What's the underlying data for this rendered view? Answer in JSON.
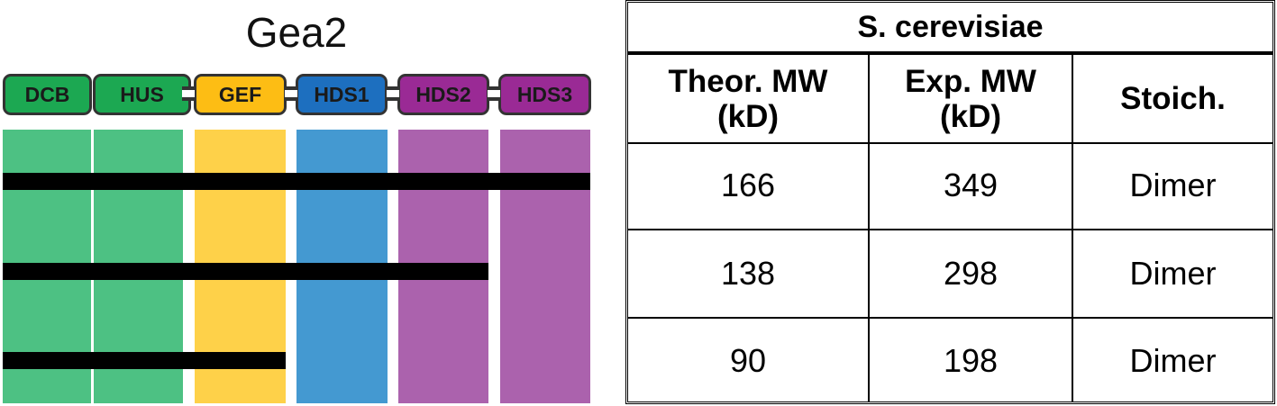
{
  "diagram": {
    "title": "Gea2",
    "domains": [
      {
        "label": "DCB",
        "pill_color": "#1ca852",
        "band_color": "#4dc183",
        "text_color": "#1a1a1a"
      },
      {
        "label": "HUS",
        "pill_color": "#1ca852",
        "band_color": "#4dc183",
        "text_color": "#1a1a1a"
      },
      {
        "label": "GEF",
        "pill_color": "#fdbd14",
        "band_color": "#fed149",
        "text_color": "#1a1a1a"
      },
      {
        "label": "HDS1",
        "pill_color": "#1d6fbf",
        "band_color": "#4499d1",
        "text_color": "#1a1a1a"
      },
      {
        "label": "HDS2",
        "pill_color": "#9a2a95",
        "band_color": "#ab62ad",
        "text_color": "#1a1a1a"
      },
      {
        "label": "HDS3",
        "pill_color": "#9a2a95",
        "band_color": "#ab62ad",
        "text_color": "#1a1a1a"
      }
    ],
    "constructs": [
      {
        "spans_domains": 6
      },
      {
        "spans_domains": 5
      },
      {
        "spans_domains": 3
      }
    ]
  },
  "table": {
    "title": "S. cerevisiae",
    "headers": [
      "Theor. MW\n(kD)",
      "Exp. MW\n(kD)",
      "Stoich."
    ],
    "rows": [
      [
        "166",
        "349",
        "Dimer"
      ],
      [
        "138",
        "298",
        "Dimer"
      ],
      [
        "90",
        "198",
        "Dimer"
      ]
    ]
  }
}
